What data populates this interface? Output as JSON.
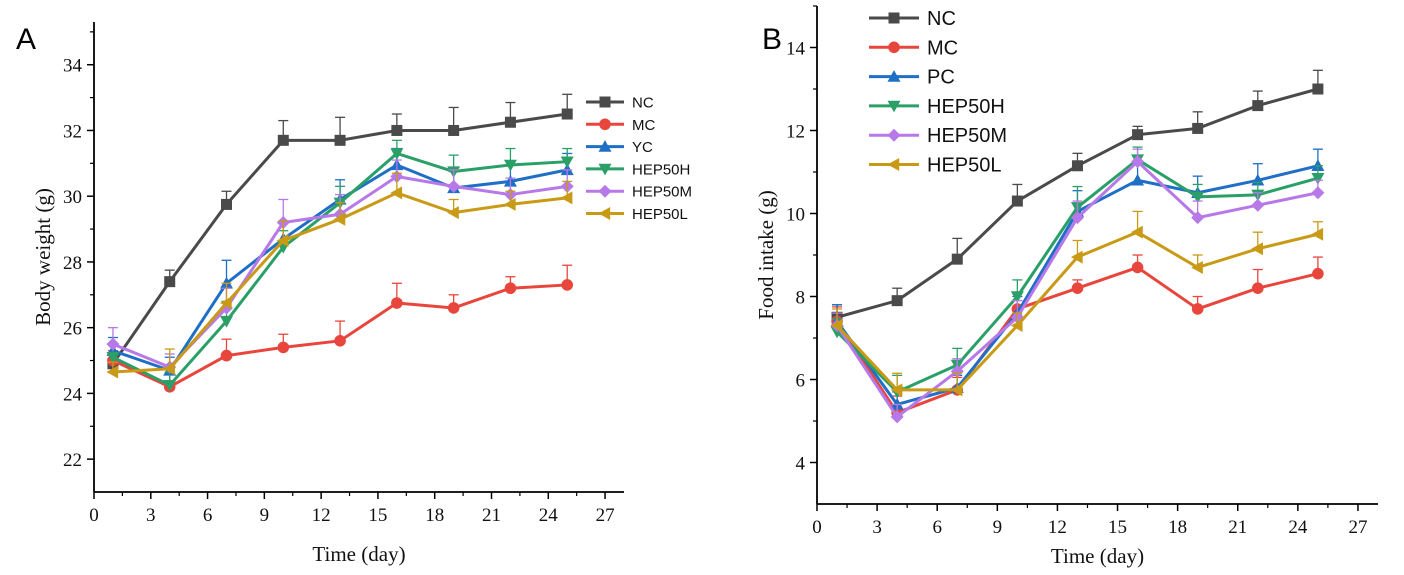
{
  "chart_data": [
    {
      "type": "line",
      "panel": "A",
      "xlabel": "Time (day)",
      "ylabel": "Body weight (g)",
      "xlim": [
        0,
        28
      ],
      "ylim": [
        21,
        35.3
      ],
      "xticks": [
        "0",
        "3",
        "6",
        "9",
        "12",
        "15",
        "18",
        "21",
        "24",
        "27"
      ],
      "yticks": [
        "22",
        "24",
        "26",
        "28",
        "30",
        "32",
        "34"
      ],
      "legend_position": "top-right",
      "x": [
        1,
        4,
        7,
        10,
        13,
        16,
        19,
        22,
        25
      ],
      "series": [
        {
          "name": "NC",
          "color": "#4a4a4a",
          "marker": "square",
          "values": [
            24.9,
            27.4,
            29.75,
            31.7,
            31.7,
            32.0,
            32.0,
            32.25,
            32.5
          ],
          "errors": [
            0.3,
            0.35,
            0.4,
            0.6,
            0.7,
            0.5,
            0.7,
            0.6,
            0.6
          ]
        },
        {
          "name": "MC",
          "color": "#e8463c",
          "marker": "circle",
          "values": [
            25.0,
            24.2,
            25.15,
            25.4,
            25.6,
            26.75,
            26.6,
            27.2,
            27.3
          ],
          "errors": [
            0.3,
            0.6,
            0.5,
            0.4,
            0.6,
            0.6,
            0.4,
            0.35,
            0.6
          ]
        },
        {
          "name": "YC",
          "color": "#1f6fc6",
          "marker": "triangle-up",
          "values": [
            25.3,
            24.7,
            27.35,
            28.7,
            29.9,
            30.95,
            30.25,
            30.45,
            30.8
          ],
          "errors": [
            0.4,
            0.4,
            0.7,
            0.5,
            0.6,
            0.5,
            0.5,
            0.5,
            0.5
          ]
        },
        {
          "name": "HEP50H",
          "color": "#2aa068",
          "marker": "triangle-down",
          "values": [
            25.1,
            24.25,
            26.2,
            28.45,
            29.8,
            31.3,
            30.75,
            30.95,
            31.05
          ],
          "errors": [
            0.4,
            0.4,
            0.6,
            0.5,
            0.5,
            0.4,
            0.5,
            0.5,
            0.4
          ]
        },
        {
          "name": "HEP50M",
          "color": "#b778e8",
          "marker": "diamond",
          "values": [
            25.5,
            24.8,
            26.6,
            29.2,
            29.45,
            30.6,
            30.3,
            30.05,
            30.3
          ],
          "errors": [
            0.5,
            0.4,
            0.6,
            0.7,
            0.6,
            0.5,
            0.5,
            0.5,
            0.5
          ]
        },
        {
          "name": "HEP50L",
          "color": "#c99a15",
          "marker": "triangle-left",
          "values": [
            24.65,
            24.75,
            26.75,
            28.65,
            29.3,
            30.1,
            29.5,
            29.75,
            29.95
          ],
          "errors": [
            0.3,
            0.6,
            0.6,
            0.6,
            0.5,
            0.6,
            0.4,
            0.4,
            0.5
          ]
        }
      ]
    },
    {
      "type": "line",
      "panel": "B",
      "xlabel": "Time (day)",
      "ylabel": "Food intake (g)",
      "xlim": [
        0,
        28
      ],
      "ylim": [
        3,
        15
      ],
      "xticks": [
        "0",
        "3",
        "6",
        "9",
        "12",
        "15",
        "18",
        "21",
        "24",
        "27"
      ],
      "yticks": [
        "4",
        "6",
        "8",
        "10",
        "12",
        "14"
      ],
      "legend_position": "top-left",
      "x": [
        1,
        4,
        7,
        10,
        13,
        16,
        19,
        22,
        25
      ],
      "series": [
        {
          "name": "NC",
          "color": "#4a4a4a",
          "marker": "square",
          "values": [
            7.5,
            7.9,
            8.9,
            10.3,
            11.15,
            11.9,
            12.05,
            12.6,
            13.0
          ],
          "errors": [
            0.3,
            0.3,
            0.5,
            0.4,
            0.3,
            0.2,
            0.4,
            0.35,
            0.45
          ]
        },
        {
          "name": "MC",
          "color": "#e8463c",
          "marker": "circle",
          "values": [
            7.4,
            5.2,
            5.75,
            7.7,
            8.2,
            8.7,
            7.7,
            8.2,
            8.55
          ],
          "errors": [
            0.35,
            0.4,
            0.3,
            0.4,
            0.2,
            0.3,
            0.3,
            0.45,
            0.4
          ]
        },
        {
          "name": "PC",
          "color": "#1f6fc6",
          "marker": "triangle-up",
          "values": [
            7.4,
            5.4,
            5.8,
            7.6,
            10.05,
            10.8,
            10.5,
            10.8,
            11.15
          ],
          "errors": [
            0.4,
            0.3,
            0.3,
            0.4,
            0.5,
            0.4,
            0.4,
            0.4,
            0.4
          ]
        },
        {
          "name": "HEP50H",
          "color": "#2aa068",
          "marker": "triangle-down",
          "values": [
            7.15,
            5.7,
            6.35,
            8.0,
            10.15,
            11.3,
            10.4,
            10.45,
            10.85
          ],
          "errors": [
            0.3,
            0.4,
            0.4,
            0.4,
            0.5,
            0.3,
            0.3,
            0.3,
            0.3
          ]
        },
        {
          "name": "HEP50M",
          "color": "#b778e8",
          "marker": "diamond",
          "values": [
            7.3,
            5.1,
            6.2,
            7.5,
            9.9,
            11.25,
            9.9,
            10.2,
            10.5
          ],
          "errors": [
            0.3,
            0.3,
            0.3,
            0.4,
            0.4,
            0.3,
            0.4,
            0.3,
            0.3
          ]
        },
        {
          "name": "HEP50L",
          "color": "#c99a15",
          "marker": "triangle-left",
          "values": [
            7.3,
            5.75,
            5.75,
            7.3,
            8.95,
            9.55,
            8.7,
            9.15,
            9.5
          ],
          "errors": [
            0.4,
            0.4,
            0.4,
            0.3,
            0.4,
            0.5,
            0.3,
            0.4,
            0.3
          ]
        }
      ]
    }
  ]
}
